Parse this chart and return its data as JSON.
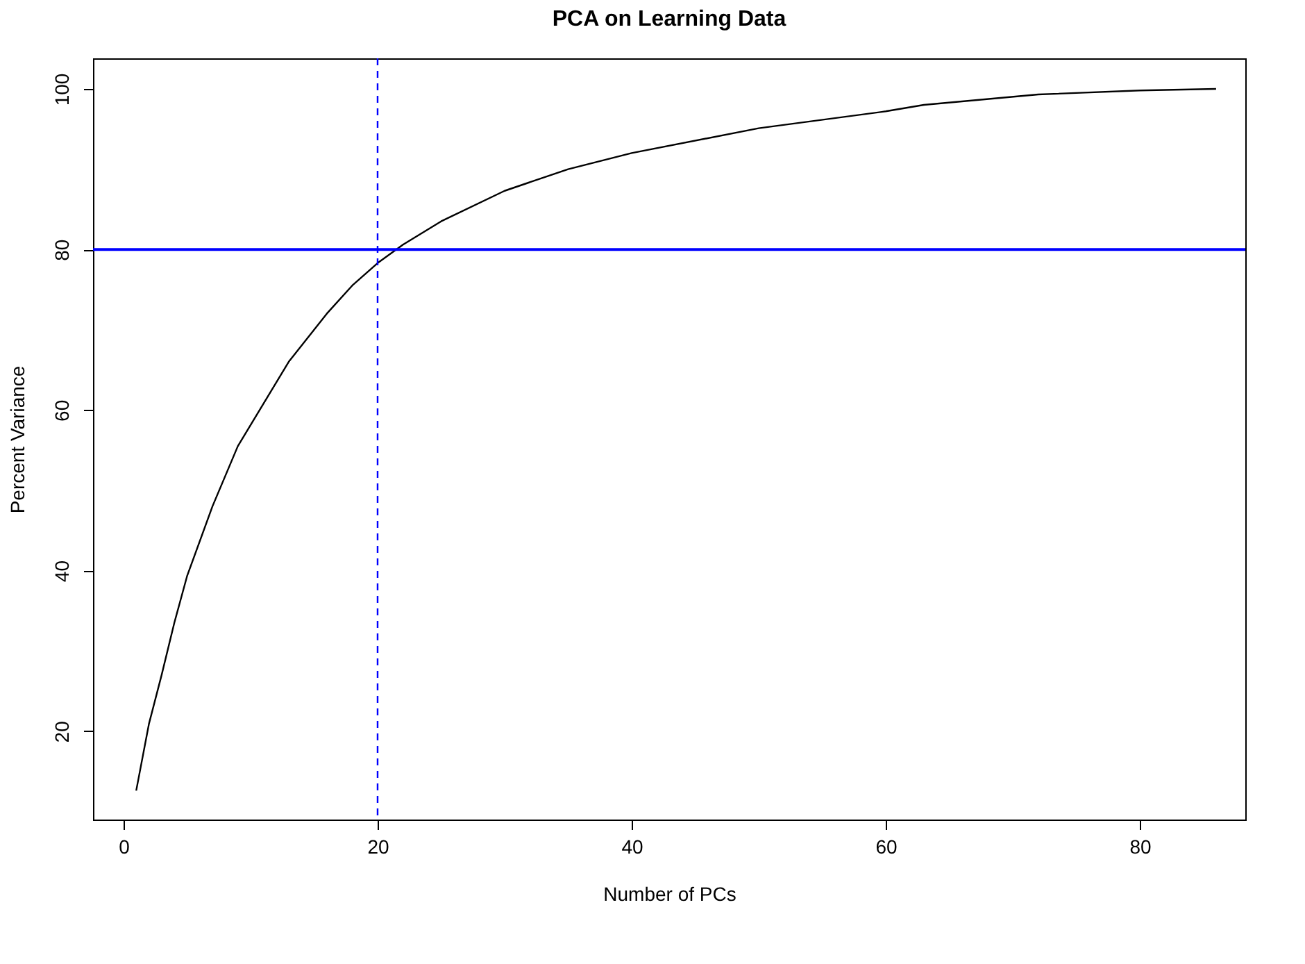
{
  "chart_data": {
    "type": "line",
    "title": "PCA on Learning Data",
    "xlabel": "Number of PCs",
    "ylabel": "Percent Variance",
    "x": [
      1,
      2,
      3,
      4,
      5,
      7,
      9,
      13,
      16,
      18,
      20,
      22,
      25,
      30,
      35,
      40,
      50,
      60,
      63,
      72,
      80,
      86
    ],
    "series": [
      {
        "color": "#000000",
        "values": [
          12.6,
          20.9,
          27,
          33.5,
          39.3,
          48,
          55.5,
          66,
          72,
          75.5,
          78.3,
          80.6,
          83.5,
          87.3,
          90,
          92,
          95.1,
          97.2,
          98,
          99.3,
          99.8,
          100
        ]
      }
    ],
    "xlim": [
      -2.4,
      88.3
    ],
    "ylim": [
      9.0,
      103.8
    ],
    "xticks": [
      0,
      20,
      40,
      60,
      80
    ],
    "yticks": [
      20,
      40,
      60,
      80,
      100
    ],
    "ref_lines": [
      {
        "axis": "y",
        "value": 80,
        "color": "#0000ff",
        "line_style": "solid"
      },
      {
        "axis": "x",
        "value": 20,
        "color": "#0000ff",
        "line_style": "dashed"
      }
    ],
    "grid": false,
    "marker": "none",
    "line_style": "solid"
  }
}
